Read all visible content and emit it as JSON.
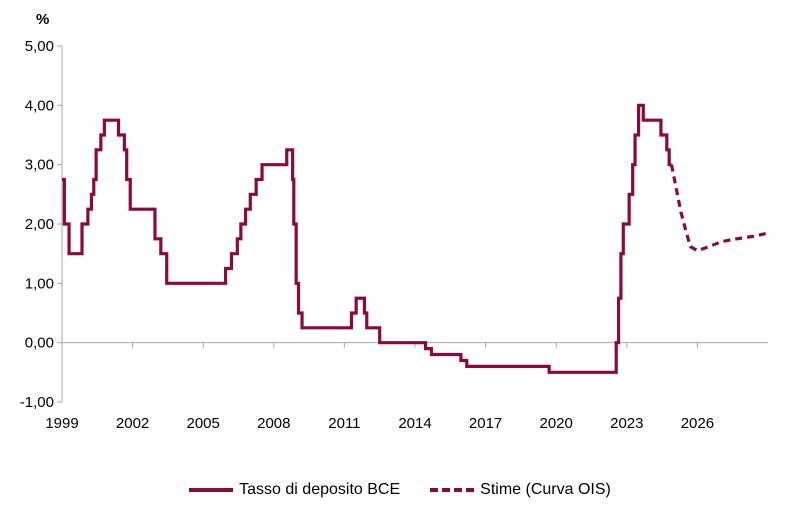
{
  "chart_data": {
    "type": "line",
    "unit_label": "%",
    "ylim": [
      -1,
      5
    ],
    "xlim": [
      1999,
      2029
    ],
    "y_ticks": [
      -1,
      0,
      1,
      2,
      3,
      4,
      5
    ],
    "y_tick_labels": [
      "-1,00",
      "0,00",
      "1,00",
      "2,00",
      "3,00",
      "4,00",
      "5,00"
    ],
    "x_ticks": [
      1999,
      2002,
      2005,
      2008,
      2011,
      2014,
      2017,
      2020,
      2023,
      2026
    ],
    "x_tick_labels": [
      "1999",
      "2002",
      "2005",
      "2008",
      "2011",
      "2014",
      "2017",
      "2020",
      "2023",
      "2026"
    ],
    "grid": false,
    "legend_position": "bottom",
    "colors": {
      "series": "#8b0a3e",
      "axis": "#a6a6a6"
    },
    "series": [
      {
        "name": "Tasso di deposito BCE",
        "style": "solid",
        "step": true,
        "x": [
          1999.0,
          1999.1,
          1999.3,
          1999.85,
          2000.1,
          2000.25,
          2000.35,
          2000.45,
          2000.65,
          2000.8,
          2000.9,
          2001.4,
          2001.65,
          2001.75,
          2001.9,
          2002.95,
          2003.2,
          2003.45,
          2005.95,
          2006.2,
          2006.45,
          2006.6,
          2006.8,
          2007.0,
          2007.25,
          2007.5,
          2008.55,
          2008.8,
          2008.85,
          2008.95,
          2009.05,
          2009.2,
          2009.4,
          2011.3,
          2011.5,
          2011.85,
          2011.95,
          2012.5,
          2014.45,
          2014.7,
          2015.95,
          2016.2,
          2019.7,
          2022.55,
          2022.65,
          2022.75,
          2022.85,
          2023.1,
          2023.25,
          2023.35,
          2023.5,
          2023.7,
          2024.45,
          2024.7,
          2024.8,
          2024.9
        ],
        "y": [
          2.75,
          2.0,
          1.5,
          2.0,
          2.25,
          2.5,
          2.75,
          3.25,
          3.5,
          3.75,
          3.75,
          3.5,
          3.25,
          2.75,
          2.25,
          1.75,
          1.5,
          1.0,
          1.25,
          1.5,
          1.75,
          2.0,
          2.25,
          2.5,
          2.75,
          3.0,
          3.25,
          2.75,
          2.0,
          1.0,
          0.5,
          0.25,
          0.25,
          0.5,
          0.75,
          0.5,
          0.25,
          0.0,
          -0.1,
          -0.2,
          -0.3,
          -0.4,
          -0.5,
          0.0,
          0.75,
          1.5,
          2.0,
          2.5,
          3.0,
          3.5,
          4.0,
          3.75,
          3.5,
          3.25,
          3.0,
          3.0
        ]
      },
      {
        "name": "Stime (Curva OIS)",
        "style": "dashed",
        "step": false,
        "x": [
          2024.9,
          2025.1,
          2025.3,
          2025.5,
          2025.7,
          2026.0,
          2026.5,
          2027.0,
          2027.5,
          2028.0,
          2028.5,
          2028.9
        ],
        "y": [
          3.0,
          2.6,
          2.2,
          1.9,
          1.62,
          1.55,
          1.62,
          1.7,
          1.74,
          1.77,
          1.8,
          1.84
        ]
      }
    ]
  }
}
